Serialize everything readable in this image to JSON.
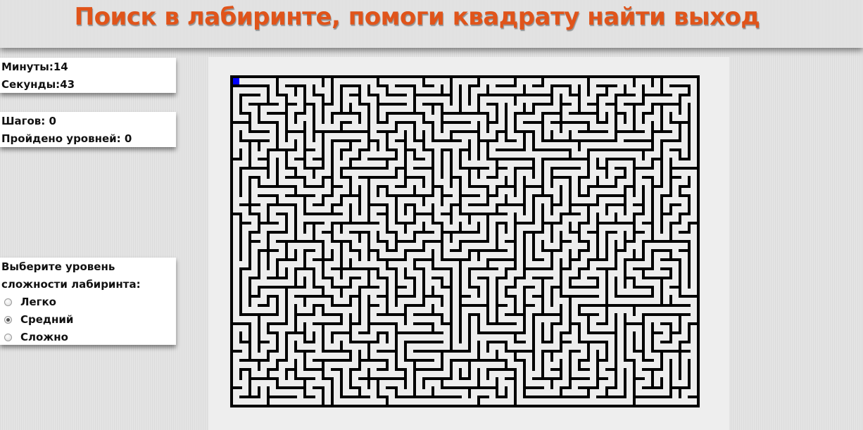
{
  "header": {
    "title": "Поиск в лабиринте, помоги квадрату найти выход"
  },
  "timer": {
    "minutes_label": "Минуты:",
    "minutes_value": "14",
    "seconds_label": "Секунды:",
    "seconds_value": "43"
  },
  "stats": {
    "steps_label": "Шагов:",
    "steps_value": "0",
    "levels_label": "Пройдено уровней:",
    "levels_value": "0"
  },
  "difficulty": {
    "prompt_line1": "Выберите уровень",
    "prompt_line2": "сложности лабиринта:",
    "options": [
      {
        "label": "Легко",
        "checked": false
      },
      {
        "label": "Средний",
        "checked": true
      },
      {
        "label": "Сложно",
        "checked": false
      }
    ]
  },
  "maze": {
    "wall_color": "#000000",
    "path_color": "#eeeeee",
    "player_color": "#0000ff",
    "player_position": "top-left"
  },
  "colors": {
    "title": "#e0541a",
    "panel_bg": "#ffffff",
    "page_bg": "#e2e2e2"
  }
}
